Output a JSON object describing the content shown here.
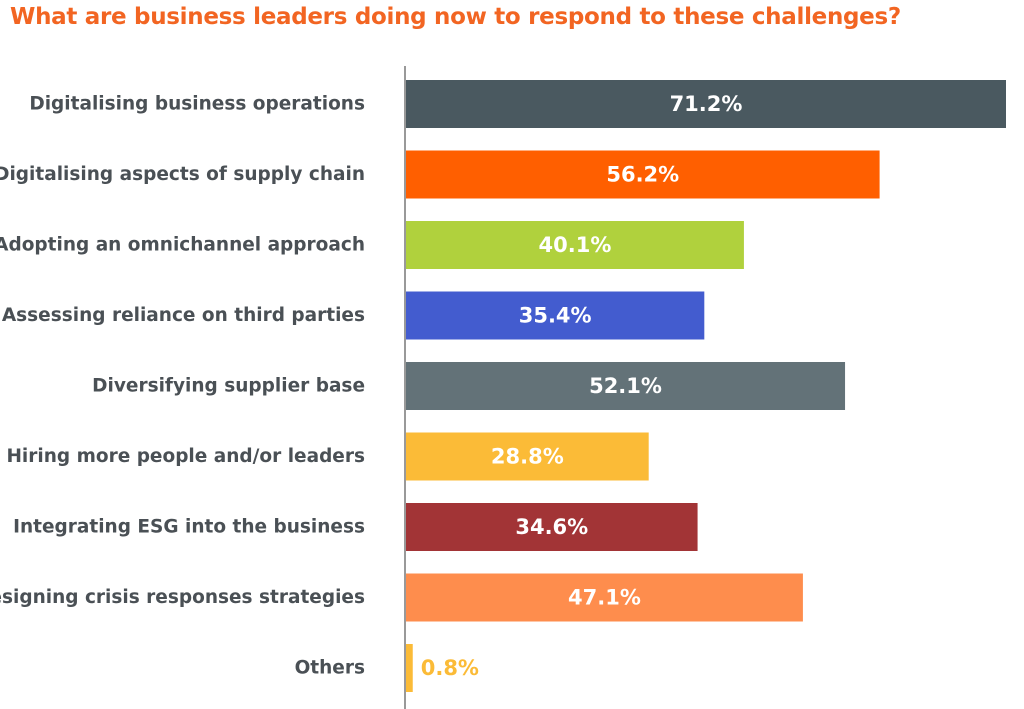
{
  "chart_data": {
    "type": "bar",
    "orientation": "horizontal",
    "title": "What are business leaders doing now to respond to these challenges?",
    "categories": [
      "Digitalising business operations",
      "Digitalising aspects of supply chain",
      "Adopting an omnichannel approach",
      "Assessing reliance on third parties",
      "Diversifying supplier base",
      "Hiring more people and/or leaders",
      "Integrating ESG into the business",
      "Designing crisis responses strategies",
      "Others"
    ],
    "values": [
      71.2,
      56.2,
      40.1,
      35.4,
      52.1,
      28.8,
      34.6,
      47.1,
      0.8
    ],
    "value_labels": [
      "71.2%",
      "56.2%",
      "40.1%",
      "35.4%",
      "52.1%",
      "28.8%",
      "34.6%",
      "47.1%",
      "0.8%"
    ],
    "colors": [
      "#4a5960",
      "#ff5f00",
      "#b0d13d",
      "#435ccf",
      "#637278",
      "#fbbb37",
      "#a23436",
      "#fe8d4d",
      "#fbbb37"
    ],
    "label_inside_color": "#ffffff",
    "xlabel": "",
    "ylabel": "",
    "xlim": [
      0,
      71.2
    ],
    "grid": false,
    "axis_color": "#333333"
  }
}
